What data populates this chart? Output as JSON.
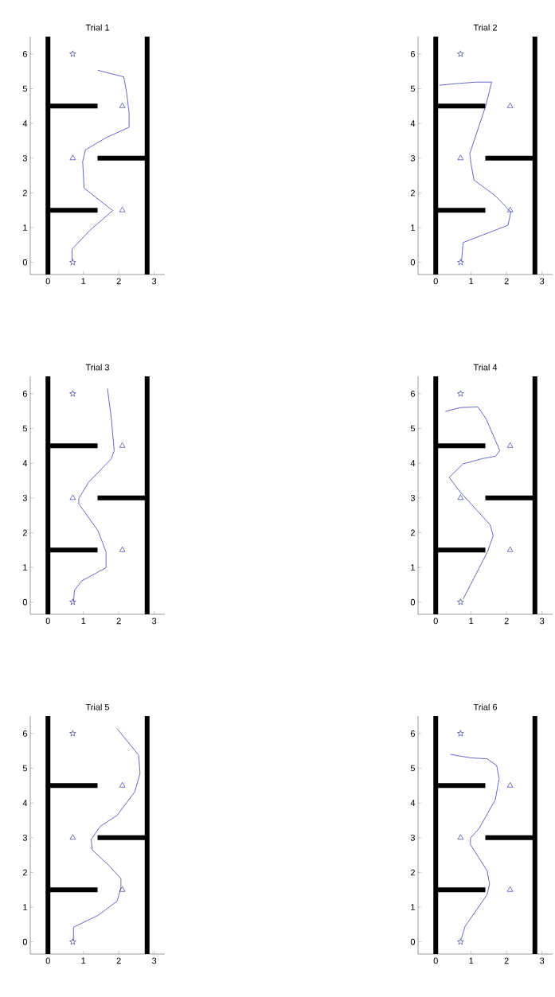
{
  "chart_data": [
    {
      "type": "line",
      "title": "Trial 1",
      "xlim": [
        -0.5,
        3.3
      ],
      "ylim": [
        -0.35,
        6.5
      ],
      "xticks": [
        0,
        1,
        2,
        3
      ],
      "yticks": [
        0,
        1,
        2,
        3,
        4,
        5,
        6
      ],
      "series": [
        {
          "type": "line",
          "color": "#000000",
          "x": [
            0,
            0
          ],
          "values": [
            -0.35,
            6.5
          ]
        },
        {
          "type": "line",
          "color": "#000000",
          "x": [
            2.8,
            2.8
          ],
          "values": [
            -0.35,
            6.5
          ]
        },
        {
          "type": "line",
          "color": "#000000",
          "x": [
            0,
            1.4
          ],
          "values": [
            4.5,
            4.5
          ]
        },
        {
          "type": "line",
          "color": "#000000",
          "x": [
            0,
            1.4
          ],
          "values": [
            1.5,
            1.5
          ]
        },
        {
          "type": "line",
          "color": "#000000",
          "x": [
            1.4,
            2.8
          ],
          "values": [
            3,
            3
          ]
        },
        {
          "type": "scatter",
          "marker": "star",
          "color": "#1c1c8c",
          "x": [
            0.7,
            0.7
          ],
          "values": [
            0,
            6
          ]
        },
        {
          "type": "scatter",
          "marker": "triangle",
          "color": "#1c1c8c",
          "x": [
            2.1,
            0.7,
            2.1
          ],
          "values": [
            4.5,
            3,
            1.5
          ]
        },
        {
          "type": "line",
          "color": "#2a2aa8",
          "x": [
            0.68,
            0.68,
            1.18,
            1.83,
            1.02,
            0.98,
            1.06,
            1.64,
            2.29,
            2.29,
            2.22,
            2.14,
            1.41
          ],
          "values": [
            0.05,
            0.38,
            0.92,
            1.49,
            2.14,
            2.9,
            3.24,
            3.59,
            3.89,
            4.31,
            4.89,
            5.34,
            5.53
          ]
        }
      ]
    },
    {
      "type": "line",
      "title": "Trial 2",
      "xlim": [
        -0.5,
        3.3
      ],
      "ylim": [
        -0.35,
        6.5
      ],
      "xticks": [
        0,
        1,
        2,
        3
      ],
      "yticks": [
        0,
        1,
        2,
        3,
        4,
        5,
        6
      ],
      "series": [
        {
          "type": "line",
          "color": "#000000",
          "x": [
            0,
            0
          ],
          "values": [
            -0.35,
            6.5
          ]
        },
        {
          "type": "line",
          "color": "#000000",
          "x": [
            2.8,
            2.8
          ],
          "values": [
            -0.35,
            6.5
          ]
        },
        {
          "type": "line",
          "color": "#000000",
          "x": [
            0,
            1.4
          ],
          "values": [
            4.5,
            4.5
          ]
        },
        {
          "type": "line",
          "color": "#000000",
          "x": [
            0,
            1.4
          ],
          "values": [
            1.5,
            1.5
          ]
        },
        {
          "type": "line",
          "color": "#000000",
          "x": [
            1.4,
            2.8
          ],
          "values": [
            3,
            3
          ]
        },
        {
          "type": "scatter",
          "marker": "star",
          "color": "#1c1c8c",
          "x": [
            0.7,
            0.7
          ],
          "values": [
            0,
            6
          ]
        },
        {
          "type": "scatter",
          "marker": "triangle",
          "color": "#1c1c8c",
          "x": [
            2.1,
            0.7,
            2.1
          ],
          "values": [
            4.5,
            3,
            1.5
          ]
        },
        {
          "type": "line",
          "color": "#2a2aa8",
          "x": [
            0.73,
            0.77,
            1.46,
            2.04,
            2.12,
            1.69,
            1.08,
            1.0,
            0.96,
            1.41,
            1.58,
            1.15,
            0.62,
            0.1
          ],
          "values": [
            0.04,
            0.57,
            0.84,
            1.07,
            1.45,
            1.91,
            2.37,
            2.82,
            3.13,
            4.5,
            5.19,
            5.19,
            5.15,
            5.1
          ]
        }
      ]
    },
    {
      "type": "line",
      "title": "Trial 3",
      "xlim": [
        -0.5,
        3.3
      ],
      "ylim": [
        -0.35,
        6.5
      ],
      "xticks": [
        0,
        1,
        2,
        3
      ],
      "yticks": [
        0,
        1,
        2,
        3,
        4,
        5,
        6
      ],
      "series": [
        {
          "type": "line",
          "color": "#000000",
          "x": [
            0,
            0
          ],
          "values": [
            -0.35,
            6.5
          ]
        },
        {
          "type": "line",
          "color": "#000000",
          "x": [
            2.8,
            2.8
          ],
          "values": [
            -0.35,
            6.5
          ]
        },
        {
          "type": "line",
          "color": "#000000",
          "x": [
            0,
            1.4
          ],
          "values": [
            4.5,
            4.5
          ]
        },
        {
          "type": "line",
          "color": "#000000",
          "x": [
            0,
            1.4
          ],
          "values": [
            1.5,
            1.5
          ]
        },
        {
          "type": "line",
          "color": "#000000",
          "x": [
            1.4,
            2.8
          ],
          "values": [
            3,
            3
          ]
        },
        {
          "type": "scatter",
          "marker": "star",
          "color": "#1c1c8c",
          "x": [
            0.7,
            0.7
          ],
          "values": [
            0,
            6
          ]
        },
        {
          "type": "scatter",
          "marker": "triangle",
          "color": "#1c1c8c",
          "x": [
            2.1,
            0.7,
            2.1
          ],
          "values": [
            4.5,
            3,
            1.5
          ]
        },
        {
          "type": "line",
          "color": "#2a2aa8",
          "x": [
            0.72,
            0.75,
            0.95,
            1.64,
            1.64,
            1.41,
            0.87,
            0.87,
            1.14,
            1.79,
            1.87,
            1.79,
            1.68
          ],
          "values": [
            0.0,
            0.34,
            0.61,
            0.99,
            1.45,
            2.06,
            2.83,
            2.98,
            3.44,
            4.13,
            4.36,
            5.28,
            6.15
          ]
        }
      ]
    },
    {
      "type": "line",
      "title": "Trial 4",
      "xlim": [
        -0.5,
        3.3
      ],
      "ylim": [
        -0.35,
        6.5
      ],
      "xticks": [
        0,
        1,
        2,
        3
      ],
      "yticks": [
        0,
        1,
        2,
        3,
        4,
        5,
        6
      ],
      "series": [
        {
          "type": "line",
          "color": "#000000",
          "x": [
            0,
            0
          ],
          "values": [
            -0.35,
            6.5
          ]
        },
        {
          "type": "line",
          "color": "#000000",
          "x": [
            2.8,
            2.8
          ],
          "values": [
            -0.35,
            6.5
          ]
        },
        {
          "type": "line",
          "color": "#000000",
          "x": [
            0,
            1.4
          ],
          "values": [
            4.5,
            4.5
          ]
        },
        {
          "type": "line",
          "color": "#000000",
          "x": [
            0,
            1.4
          ],
          "values": [
            1.5,
            1.5
          ]
        },
        {
          "type": "line",
          "color": "#000000",
          "x": [
            1.4,
            2.8
          ],
          "values": [
            3,
            3
          ]
        },
        {
          "type": "scatter",
          "marker": "star",
          "color": "#1c1c8c",
          "x": [
            0.7,
            0.7
          ],
          "values": [
            0,
            6
          ]
        },
        {
          "type": "scatter",
          "marker": "triangle",
          "color": "#1c1c8c",
          "x": [
            2.1,
            0.7,
            2.1
          ],
          "values": [
            4.5,
            3,
            1.5
          ]
        },
        {
          "type": "line",
          "color": "#2a2aa8",
          "x": [
            0.77,
            1.46,
            1.62,
            1.54,
            0.69,
            0.38,
            0.77,
            1.31,
            1.69,
            1.81,
            1.65,
            1.42,
            1.19,
            0.69,
            0.27
          ],
          "values": [
            0.08,
            1.45,
            1.91,
            2.22,
            3.17,
            3.59,
            3.98,
            4.13,
            4.2,
            4.36,
            4.74,
            5.28,
            5.62,
            5.6,
            5.49
          ]
        }
      ]
    },
    {
      "type": "line",
      "title": "Trial 5",
      "xlim": [
        -0.5,
        3.3
      ],
      "ylim": [
        -0.35,
        6.5
      ],
      "xticks": [
        0,
        1,
        2,
        3
      ],
      "yticks": [
        0,
        1,
        2,
        3,
        4,
        5,
        6
      ],
      "series": [
        {
          "type": "line",
          "color": "#000000",
          "x": [
            0,
            0
          ],
          "values": [
            -0.35,
            6.5
          ]
        },
        {
          "type": "line",
          "color": "#000000",
          "x": [
            2.8,
            2.8
          ],
          "values": [
            -0.35,
            6.5
          ]
        },
        {
          "type": "line",
          "color": "#000000",
          "x": [
            0,
            1.4
          ],
          "values": [
            4.5,
            4.5
          ]
        },
        {
          "type": "line",
          "color": "#000000",
          "x": [
            0,
            1.4
          ],
          "values": [
            1.5,
            1.5
          ]
        },
        {
          "type": "line",
          "color": "#000000",
          "x": [
            1.4,
            2.8
          ],
          "values": [
            3,
            3
          ]
        },
        {
          "type": "scatter",
          "marker": "star",
          "color": "#1c1c8c",
          "x": [
            0.7,
            0.7
          ],
          "values": [
            0,
            6
          ]
        },
        {
          "type": "scatter",
          "marker": "triangle",
          "color": "#1c1c8c",
          "x": [
            2.1,
            0.7,
            2.1
          ],
          "values": [
            4.5,
            3,
            1.5
          ]
        },
        {
          "type": "line",
          "color": "#2a2aa8",
          "x": [
            0.72,
            0.72,
            1.02,
            1.41,
            1.95,
            2.06,
            2.06,
            1.72,
            1.25,
            1.22,
            1.48,
            1.95,
            2.45,
            2.6,
            2.56,
            1.95
          ],
          "values": [
            0.04,
            0.42,
            0.57,
            0.76,
            1.17,
            1.55,
            1.82,
            2.2,
            2.65,
            2.95,
            3.33,
            3.64,
            4.32,
            4.85,
            5.38,
            6.14
          ]
        }
      ]
    },
    {
      "type": "line",
      "title": "Trial 6",
      "xlim": [
        -0.5,
        3.3
      ],
      "ylim": [
        -0.35,
        6.5
      ],
      "xticks": [
        0,
        1,
        2,
        3
      ],
      "yticks": [
        0,
        1,
        2,
        3,
        4,
        5,
        6
      ],
      "series": [
        {
          "type": "line",
          "color": "#000000",
          "x": [
            0,
            0
          ],
          "values": [
            -0.35,
            6.5
          ]
        },
        {
          "type": "line",
          "color": "#000000",
          "x": [
            2.8,
            2.8
          ],
          "values": [
            -0.35,
            6.5
          ]
        },
        {
          "type": "line",
          "color": "#000000",
          "x": [
            0,
            1.4
          ],
          "values": [
            4.5,
            4.5
          ]
        },
        {
          "type": "line",
          "color": "#000000",
          "x": [
            0,
            1.4
          ],
          "values": [
            1.5,
            1.5
          ]
        },
        {
          "type": "line",
          "color": "#000000",
          "x": [
            1.4,
            2.8
          ],
          "values": [
            3,
            3
          ]
        },
        {
          "type": "scatter",
          "marker": "star",
          "color": "#1c1c8c",
          "x": [
            0.7,
            0.7
          ],
          "values": [
            0,
            6
          ]
        },
        {
          "type": "scatter",
          "marker": "triangle",
          "color": "#1c1c8c",
          "x": [
            2.1,
            0.7,
            2.1
          ],
          "values": [
            4.5,
            3,
            1.5
          ]
        },
        {
          "type": "line",
          "color": "#2a2aa8",
          "x": [
            0.72,
            0.83,
            1.45,
            1.52,
            1.45,
            0.98,
            0.98,
            1.22,
            1.68,
            1.79,
            1.72,
            1.45,
            0.98,
            0.41
          ],
          "values": [
            0.08,
            0.45,
            1.36,
            1.67,
            2.05,
            2.8,
            2.99,
            3.26,
            4.09,
            4.7,
            5.08,
            5.27,
            5.3,
            5.4
          ]
        }
      ]
    }
  ]
}
